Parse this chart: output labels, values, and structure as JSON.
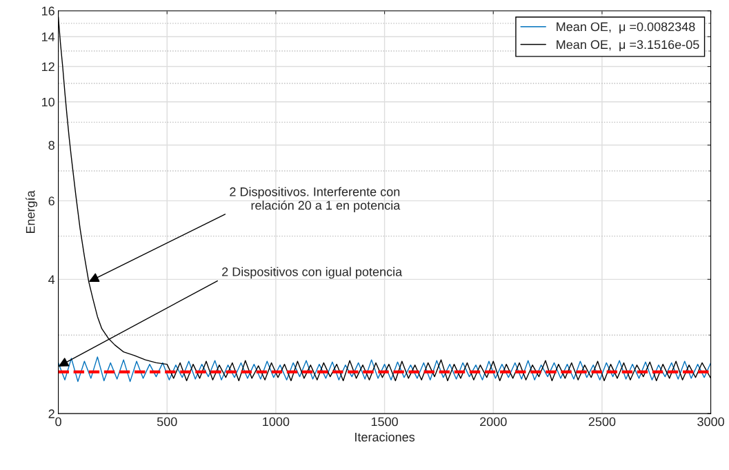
{
  "chart_data": {
    "type": "line",
    "xlabel": "Iteraciones",
    "ylabel": "Energía",
    "log": "y",
    "xlim": [
      0,
      3000
    ],
    "xticks": [
      0,
      500,
      1000,
      1500,
      2000,
      2500,
      3000
    ],
    "ylim": [
      2,
      16
    ],
    "yticks": [
      2,
      4,
      6,
      8,
      10,
      12,
      14,
      16
    ],
    "grid": true,
    "legend": "top right",
    "series": [
      {
        "name": "Mean OE,  μ =0.0082348",
        "color": "#0072bd",
        "x": [
          0,
          30,
          60,
          90,
          120,
          150,
          180,
          210,
          240,
          270,
          300,
          330,
          360,
          390,
          420,
          450,
          480,
          510,
          540,
          570,
          600,
          630,
          660,
          690,
          720,
          750,
          780,
          810,
          840,
          870,
          900,
          930,
          960,
          990,
          1020,
          1050,
          1080,
          1110,
          1140,
          1170,
          1200,
          1230,
          1260,
          1290,
          1320,
          1350,
          1380,
          1410,
          1440,
          1470,
          1500,
          1530,
          1560,
          1590,
          1620,
          1650,
          1680,
          1710,
          1740,
          1770,
          1800,
          1830,
          1860,
          1890,
          1920,
          1950,
          1980,
          2010,
          2040,
          2070,
          2100,
          2130,
          2160,
          2190,
          2220,
          2250,
          2280,
          2310,
          2340,
          2370,
          2400,
          2430,
          2460,
          2490,
          2520,
          2550,
          2580,
          2610,
          2640,
          2670,
          2700,
          2730,
          2760,
          2790,
          2820,
          2850,
          2880,
          2910,
          2940,
          2970,
          3000
        ],
        "values": [
          2.6,
          2.38,
          2.66,
          2.36,
          2.62,
          2.4,
          2.68,
          2.37,
          2.6,
          2.39,
          2.64,
          2.36,
          2.62,
          2.4,
          2.58,
          2.42,
          2.6,
          2.38,
          2.57,
          2.41,
          2.62,
          2.39,
          2.58,
          2.42,
          2.63,
          2.38,
          2.57,
          2.41,
          2.6,
          2.4,
          2.58,
          2.39,
          2.62,
          2.41,
          2.57,
          2.38,
          2.6,
          2.42,
          2.63,
          2.39,
          2.58,
          2.4,
          2.61,
          2.38,
          2.57,
          2.42,
          2.6,
          2.39,
          2.64,
          2.4,
          2.58,
          2.38,
          2.61,
          2.41,
          2.57,
          2.4,
          2.6,
          2.38,
          2.63,
          2.41,
          2.58,
          2.39,
          2.6,
          2.42,
          2.57,
          2.38,
          2.62,
          2.4,
          2.58,
          2.41,
          2.6,
          2.39,
          2.63,
          2.38,
          2.57,
          2.42,
          2.6,
          2.4,
          2.58,
          2.39,
          2.62,
          2.41,
          2.57,
          2.38,
          2.6,
          2.42,
          2.63,
          2.39,
          2.58,
          2.4,
          2.61,
          2.38,
          2.57,
          2.42,
          2.6,
          2.39,
          2.62,
          2.4,
          2.58,
          2.41,
          2.6
        ]
      },
      {
        "name": "Mean OE,  μ =3.1516e-05",
        "color": "#000000",
        "x": [
          0,
          10,
          20,
          30,
          40,
          50,
          60,
          80,
          100,
          120,
          140,
          160,
          180,
          200,
          230,
          260,
          300,
          350,
          400,
          450,
          500,
          530,
          560,
          590,
          620,
          650,
          680,
          710,
          740,
          770,
          800,
          830,
          860,
          890,
          920,
          950,
          980,
          1010,
          1040,
          1070,
          1100,
          1130,
          1160,
          1190,
          1220,
          1250,
          1280,
          1310,
          1340,
          1370,
          1400,
          1430,
          1460,
          1490,
          1520,
          1550,
          1580,
          1610,
          1640,
          1670,
          1700,
          1730,
          1760,
          1790,
          1820,
          1850,
          1880,
          1910,
          1940,
          1970,
          2000,
          2030,
          2060,
          2090,
          2120,
          2150,
          2180,
          2210,
          2240,
          2270,
          2300,
          2330,
          2360,
          2390,
          2420,
          2450,
          2480,
          2510,
          2540,
          2570,
          2600,
          2630,
          2660,
          2690,
          2720,
          2750,
          2780,
          2810,
          2840,
          2870,
          2900,
          2930,
          2960,
          3000
        ],
        "values": [
          15.5,
          13.5,
          12,
          10.5,
          9.3,
          8.3,
          7.5,
          6.2,
          5.2,
          4.5,
          3.95,
          3.6,
          3.3,
          3.1,
          2.95,
          2.85,
          2.75,
          2.7,
          2.64,
          2.6,
          2.58,
          2.4,
          2.6,
          2.37,
          2.58,
          2.4,
          2.62,
          2.38,
          2.57,
          2.41,
          2.6,
          2.37,
          2.63,
          2.4,
          2.56,
          2.38,
          2.6,
          2.41,
          2.58,
          2.37,
          2.62,
          2.4,
          2.57,
          2.38,
          2.6,
          2.42,
          2.58,
          2.37,
          2.63,
          2.4,
          2.57,
          2.38,
          2.6,
          2.41,
          2.58,
          2.37,
          2.62,
          2.4,
          2.57,
          2.38,
          2.6,
          2.42,
          2.64,
          2.37,
          2.58,
          2.4,
          2.6,
          2.38,
          2.57,
          2.41,
          2.62,
          2.37,
          2.58,
          2.4,
          2.6,
          2.38,
          2.57,
          2.42,
          2.63,
          2.37,
          2.58,
          2.4,
          2.6,
          2.38,
          2.57,
          2.41,
          2.62,
          2.37,
          2.58,
          2.4,
          2.6,
          2.38,
          2.57,
          2.42,
          2.61,
          2.37,
          2.58,
          2.4,
          2.62,
          2.38,
          2.57,
          2.41,
          2.6,
          2.4
        ]
      }
    ],
    "ref_lines": [
      {
        "axis": "y",
        "value": 2.48,
        "color": "#ff0000",
        "line_style": "dashed"
      }
    ],
    "annotations": [
      {
        "text": "2 Dispositivos. Interferente con\nrelación 20 a 1 en potencia",
        "x": 140,
        "y": 3.95
      },
      {
        "text": "2 Dispositivos con igual potencia",
        "x": 0,
        "y": 2.55
      }
    ]
  }
}
